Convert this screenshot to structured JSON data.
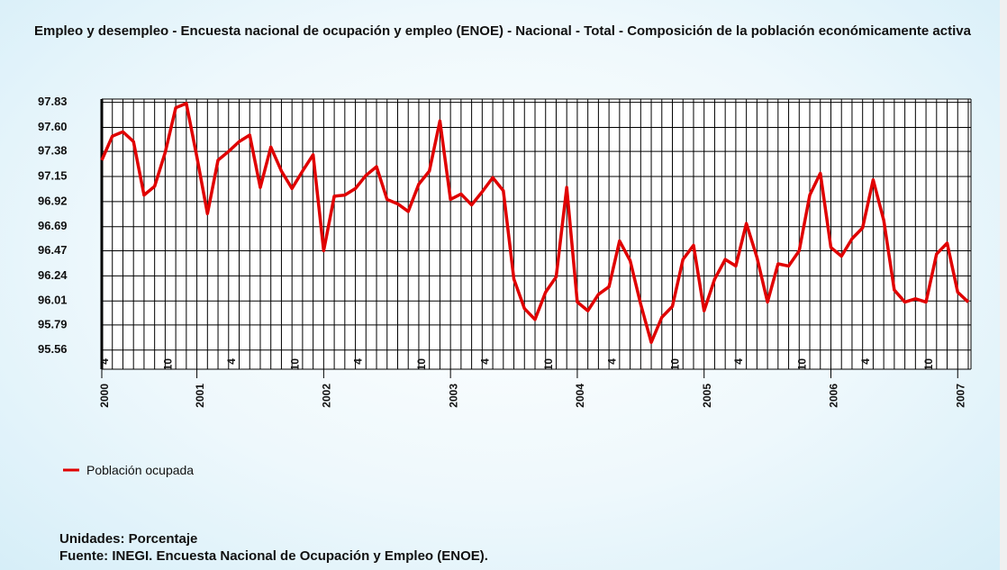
{
  "chart_data": {
    "type": "line",
    "title": "Empleo y desempleo - Encuesta nacional de ocupación y empleo (ENOE) - Nacional - Total - Composición de la población económicamente activa",
    "categories": [
      "4",
      null,
      null,
      null,
      null,
      null,
      "10",
      null,
      null,
      null,
      null,
      null,
      "4",
      null,
      null,
      null,
      null,
      null,
      "10",
      null,
      null,
      null,
      null,
      null,
      "4",
      null,
      null,
      null,
      null,
      null,
      "10",
      null,
      null,
      null,
      null,
      null,
      "4",
      null,
      null,
      null,
      null,
      null,
      "10",
      null,
      null,
      null,
      null,
      null,
      "4",
      null,
      null,
      null,
      null,
      null,
      "10",
      null,
      null,
      null,
      null,
      null,
      "4",
      null,
      null,
      null,
      null,
      null,
      "10",
      null,
      null,
      null,
      null,
      null,
      "4",
      null,
      null,
      null,
      null,
      null,
      "10",
      null,
      null,
      null,
      null
    ],
    "year_labels": [
      "2000",
      null,
      null,
      null,
      null,
      null,
      null,
      null,
      null,
      "2001",
      null,
      null,
      null,
      null,
      null,
      null,
      null,
      null,
      null,
      null,
      null,
      "2002",
      null,
      null,
      null,
      null,
      null,
      null,
      null,
      null,
      null,
      null,
      null,
      "2003",
      null,
      null,
      null,
      null,
      null,
      null,
      null,
      null,
      null,
      null,
      null,
      "2004",
      null,
      null,
      null,
      null,
      null,
      null,
      null,
      null,
      null,
      null,
      null,
      "2005",
      null,
      null,
      null,
      null,
      null,
      null,
      null,
      null,
      null,
      null,
      null,
      "2006",
      null,
      null,
      null,
      null,
      null,
      null,
      null,
      null,
      null,
      null,
      null,
      "2007",
      null
    ],
    "series": [
      {
        "name": "Población ocupada",
        "color": "#e00000",
        "values": [
          97.3,
          97.52,
          97.56,
          97.47,
          96.98,
          97.06,
          97.37,
          97.78,
          97.82,
          97.33,
          96.81,
          97.3,
          97.38,
          97.47,
          97.53,
          97.05,
          97.42,
          97.2,
          97.04,
          97.2,
          97.35,
          96.47,
          96.97,
          96.98,
          97.04,
          97.16,
          97.24,
          96.94,
          96.9,
          96.83,
          97.08,
          97.2,
          97.66,
          96.94,
          96.99,
          96.89,
          97.01,
          97.14,
          97.02,
          96.21,
          95.94,
          95.84,
          96.09,
          96.23,
          97.05,
          96.0,
          95.92,
          96.07,
          96.14,
          96.56,
          96.38,
          95.98,
          95.63,
          95.86,
          95.96,
          96.39,
          96.52,
          95.92,
          96.21,
          96.39,
          96.33,
          96.72,
          96.41,
          96.0,
          96.35,
          96.33,
          96.47,
          96.98,
          97.18,
          96.5,
          96.42,
          96.58,
          96.68,
          97.12,
          96.75,
          96.11,
          96.0,
          96.03,
          96.0,
          96.44,
          96.54,
          96.09,
          96.0
        ]
      }
    ],
    "ylim": [
      95.5,
      97.86
    ],
    "yticks": [
      95.56,
      95.79,
      96.01,
      96.24,
      96.47,
      96.69,
      96.92,
      97.15,
      97.38,
      {
        "value": 97.6,
        "label": "97.60"
      },
      97.83
    ],
    "grid": true,
    "units": "Unidades: Porcentaje",
    "source": "Fuente: INEGI. Encuesta Nacional de Ocupación y Empleo (ENOE)."
  }
}
